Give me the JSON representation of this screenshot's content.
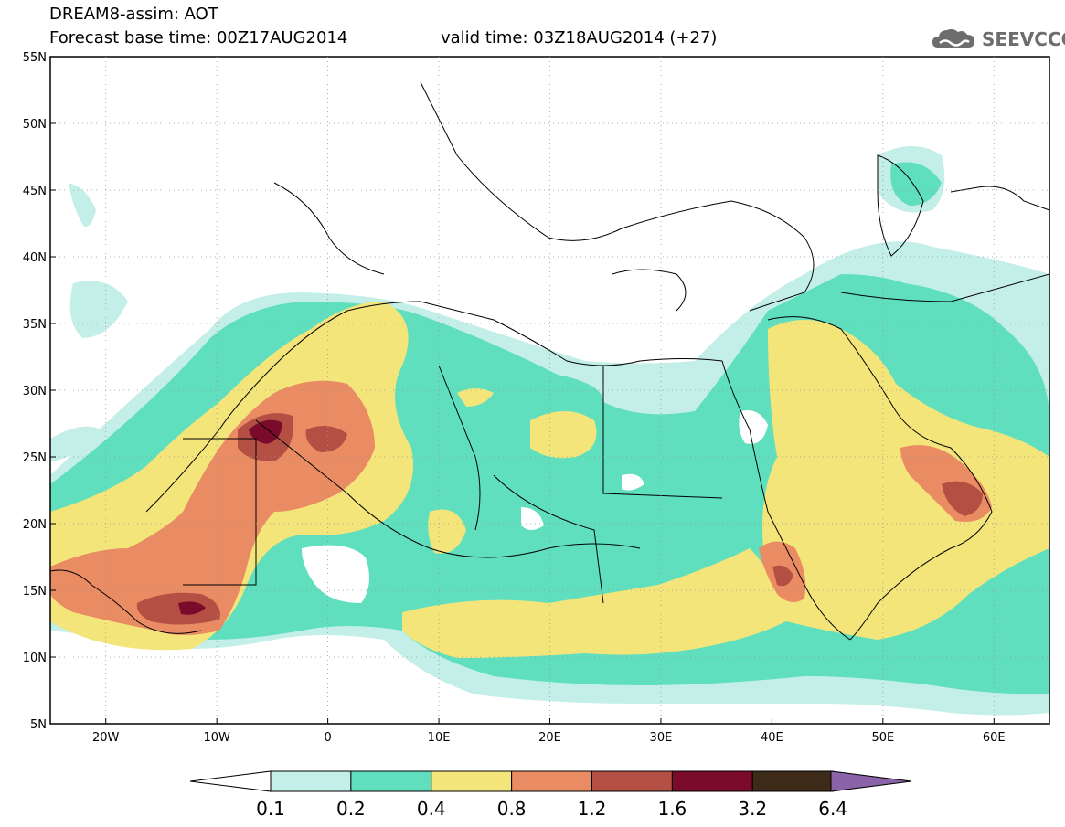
{
  "header": {
    "line1": "DREAM8-assim: AOT",
    "line2": "Forecast base time: 00Z17AUG2014",
    "line3": "valid time: 03Z18AUG2014 (+27)"
  },
  "logo": {
    "text": "SEEVCCC",
    "icon": "cloud-icon",
    "color": "#6d6d6d"
  },
  "map": {
    "lon_range": [
      -25,
      65
    ],
    "lat_range": [
      5,
      55
    ],
    "lat_labels": [
      "55N",
      "50N",
      "45N",
      "40N",
      "35N",
      "30N",
      "25N",
      "20N",
      "15N",
      "10N",
      "5N"
    ],
    "lon_labels": [
      "20W",
      "10W",
      "0",
      "10E",
      "20E",
      "30E",
      "40E",
      "50E",
      "60E"
    ]
  },
  "colorbar": {
    "labels": [
      "0.1",
      "0.2",
      "0.4",
      "0.8",
      "1.2",
      "1.6",
      "3.2",
      "6.4"
    ],
    "colors": [
      "#ffffff",
      "#c4efe9",
      "#5fdfbe",
      "#f4e57a",
      "#e98b63",
      "#b34f43",
      "#7a0b2b",
      "#3d2a18",
      "#8a63a8"
    ]
  }
}
